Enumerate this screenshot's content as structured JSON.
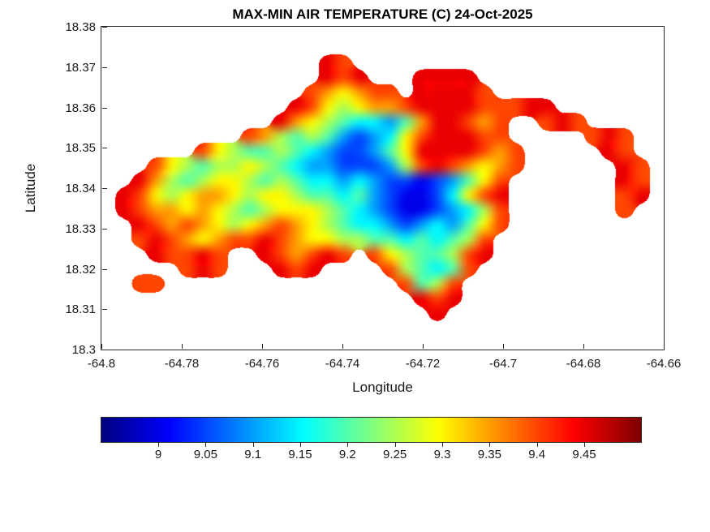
{
  "figure": {
    "title": "MAX-MIN AIR TEMPERATURE (C) 24-Oct-2025",
    "xlabel": "Longitude",
    "ylabel": "Latitude",
    "background_color": "#ffffff",
    "axis_color": "#262626"
  },
  "axes": {
    "xlim": [
      -64.8,
      -64.66
    ],
    "ylim": [
      18.3,
      18.38
    ],
    "x_tick_labels": [
      "-64.8",
      "-64.78",
      "-64.76",
      "-64.74",
      "-64.72",
      "-64.7",
      "-64.68",
      "-64.66"
    ],
    "x_tick_values": [
      -64.8,
      -64.78,
      -64.76,
      -64.74,
      -64.72,
      -64.7,
      -64.68,
      -64.66
    ],
    "y_tick_labels": [
      "18.3",
      "18.31",
      "18.32",
      "18.33",
      "18.34",
      "18.35",
      "18.36",
      "18.37",
      "18.38"
    ],
    "y_tick_values": [
      18.3,
      18.31,
      18.32,
      18.33,
      18.34,
      18.35,
      18.36,
      18.37,
      18.38
    ]
  },
  "colorbar": {
    "orientation": "horizontal",
    "colormap": "jet",
    "vmin": 8.94,
    "vmax": 9.51,
    "tick_labels": [
      "9",
      "9.05",
      "9.1",
      "9.15",
      "9.2",
      "9.25",
      "9.3",
      "9.35",
      "9.4",
      "9.45"
    ],
    "tick_values": [
      9,
      9.05,
      9.1,
      9.15,
      9.2,
      9.25,
      9.3,
      9.35,
      9.4,
      9.45
    ]
  },
  "chart_data": {
    "type": "heatmap",
    "title": "MAX-MIN AIR TEMPERATURE (C) 24-Oct-2025",
    "xlabel": "Longitude",
    "ylabel": "Latitude",
    "xlim": [
      -64.8,
      -64.66
    ],
    "ylim": [
      18.3,
      18.38
    ],
    "units": "C",
    "colormap": "jet",
    "vmin": 8.94,
    "vmax": 9.51,
    "grid": {
      "ncols": 36,
      "nrows": 22,
      "x_range": [
        -64.8,
        -64.66
      ],
      "y_range": [
        18.38,
        18.3
      ],
      "row_order": "north-to-south",
      "no_data_char": ".",
      "value_min": 9.0,
      "value_step": 0.05,
      "encoding": "each char: '.' = no data (sea); digit d => temperature (C) = value_min + d*value_step",
      "rows": [
        "....................................",
        "....................................",
        "..............98....................",
        "..............989...9999............",
        ".............876788.99998...........",
        "............98656778999988899.......",
        "...........976543324799878..898.....",
        ".........87545421236899988.....898..",
        "......865445432112469999878.....98..",
        "...865455654322111258987678......98.",
        "..975456654543323211012468.......98.",
        ".9865677656654434210013689.......89.",
        ".9877676545666543210012358.......8..",
        "..987876567876543321232468..........",
        "..89876788987665544343458...........",
        "...98898..987898.86544589...........",
        ".....898...989....854348............",
        "..88...............8458.............",
        "....................989.............",
        ".....................9..............",
        "....................................",
        "...................................."
      ]
    }
  }
}
